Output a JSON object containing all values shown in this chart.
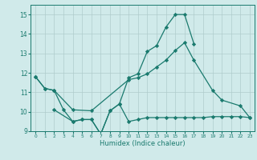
{
  "x_line1": [
    0,
    1,
    2,
    3,
    4,
    5,
    6,
    7,
    8,
    9,
    10,
    11,
    12,
    13,
    14,
    15,
    16,
    17
  ],
  "y_line1": [
    11.8,
    11.2,
    11.1,
    10.1,
    9.5,
    9.6,
    9.6,
    8.85,
    10.05,
    10.4,
    11.75,
    11.95,
    13.1,
    13.4,
    14.35,
    15.0,
    15.0,
    13.5
  ],
  "x_line2": [
    0,
    1,
    2,
    4,
    6,
    10,
    11,
    12,
    13,
    14,
    15,
    16,
    17,
    19,
    20,
    22,
    23
  ],
  "y_line2": [
    11.8,
    11.2,
    11.1,
    10.1,
    10.05,
    11.65,
    11.75,
    11.95,
    12.3,
    12.65,
    13.15,
    13.55,
    12.65,
    11.1,
    10.6,
    10.3,
    9.7
  ],
  "x_line3": [
    2,
    4,
    5,
    6,
    7,
    8,
    9,
    10,
    11,
    12,
    13,
    14,
    15,
    16,
    17,
    18,
    19,
    20,
    21,
    22,
    23
  ],
  "y_line3": [
    10.1,
    9.5,
    9.6,
    9.6,
    8.85,
    10.05,
    10.4,
    9.5,
    9.6,
    9.7,
    9.7,
    9.7,
    9.7,
    9.7,
    9.7,
    9.7,
    9.75,
    9.75,
    9.75,
    9.75,
    9.7
  ],
  "xlabel": "Humidex (Indice chaleur)",
  "xlim": [
    -0.5,
    23.5
  ],
  "ylim": [
    9.0,
    15.5
  ],
  "yticks": [
    9,
    10,
    11,
    12,
    13,
    14,
    15
  ],
  "xticks": [
    0,
    1,
    2,
    3,
    4,
    5,
    6,
    7,
    8,
    9,
    10,
    11,
    12,
    13,
    14,
    15,
    16,
    17,
    18,
    19,
    20,
    21,
    22,
    23
  ],
  "line_color": "#1a7a6e",
  "bg_color": "#d0eaea",
  "grid_color": "#b0cccc"
}
